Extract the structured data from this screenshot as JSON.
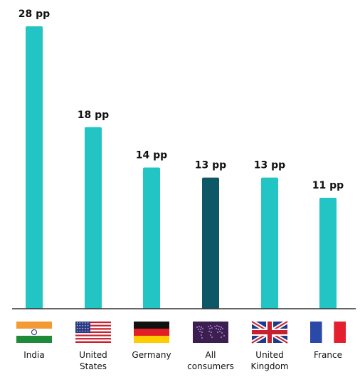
{
  "chart_data": {
    "type": "bar",
    "categories": [
      {
        "label_lines": [
          "India"
        ],
        "flag": "india-flag"
      },
      {
        "label_lines": [
          "United",
          "States"
        ],
        "flag": "us-flag"
      },
      {
        "label_lines": [
          "Germany"
        ],
        "flag": "germany-flag"
      },
      {
        "label_lines": [
          "All",
          "consumers"
        ],
        "flag": "world-map-flag"
      },
      {
        "label_lines": [
          "United",
          "Kingdom"
        ],
        "flag": "uk-flag"
      },
      {
        "label_lines": [
          "France"
        ],
        "flag": "france-flag"
      }
    ],
    "values": [
      28,
      18,
      14,
      13,
      13,
      11
    ],
    "value_labels": [
      "28 pp",
      "18 pp",
      "14 pp",
      "13 pp",
      "13 pp",
      "11 pp"
    ],
    "ylim": [
      0,
      28
    ],
    "grid": false,
    "colors": {
      "bar": "#23c4c4",
      "highlight_bar": "#0e5766",
      "baseline": "#333333"
    },
    "highlight_index": 3
  }
}
